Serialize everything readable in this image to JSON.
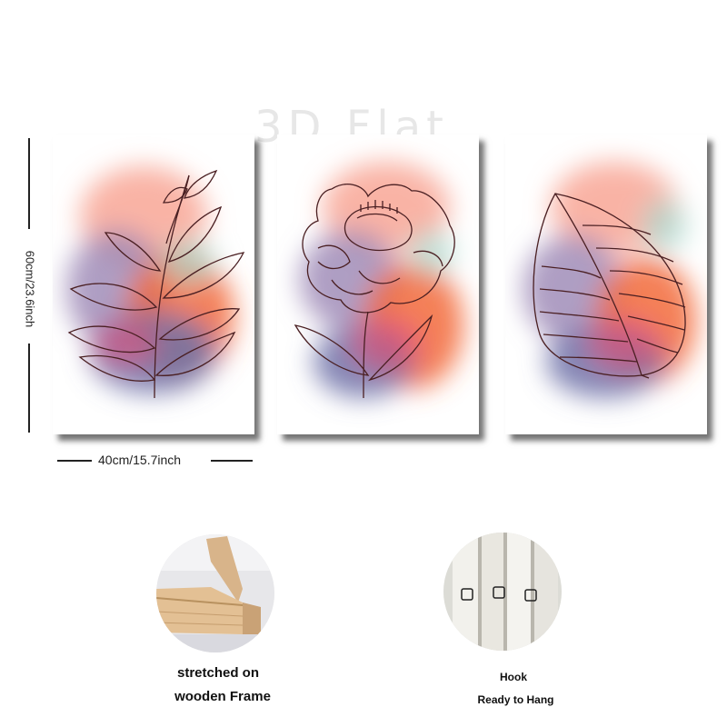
{
  "watermark": "3D Flat",
  "dimensions": {
    "height_label": "60cm/23.6inch",
    "width_label": "40cm/15.7inch"
  },
  "panels": [
    {
      "subject": "leafy-branch"
    },
    {
      "subject": "peony-flower"
    },
    {
      "subject": "single-leaf"
    }
  ],
  "features": {
    "frame": {
      "line1": "stretched on",
      "line2": "wooden Frame"
    },
    "hook": {
      "line1": "Hook",
      "line2": "Ready to Hang"
    }
  },
  "colors": {
    "line_art": "#4a1f22",
    "wash_orange": "#f26a3a",
    "wash_purple": "#6f72a8",
    "wash_pink": "#e8507a"
  }
}
